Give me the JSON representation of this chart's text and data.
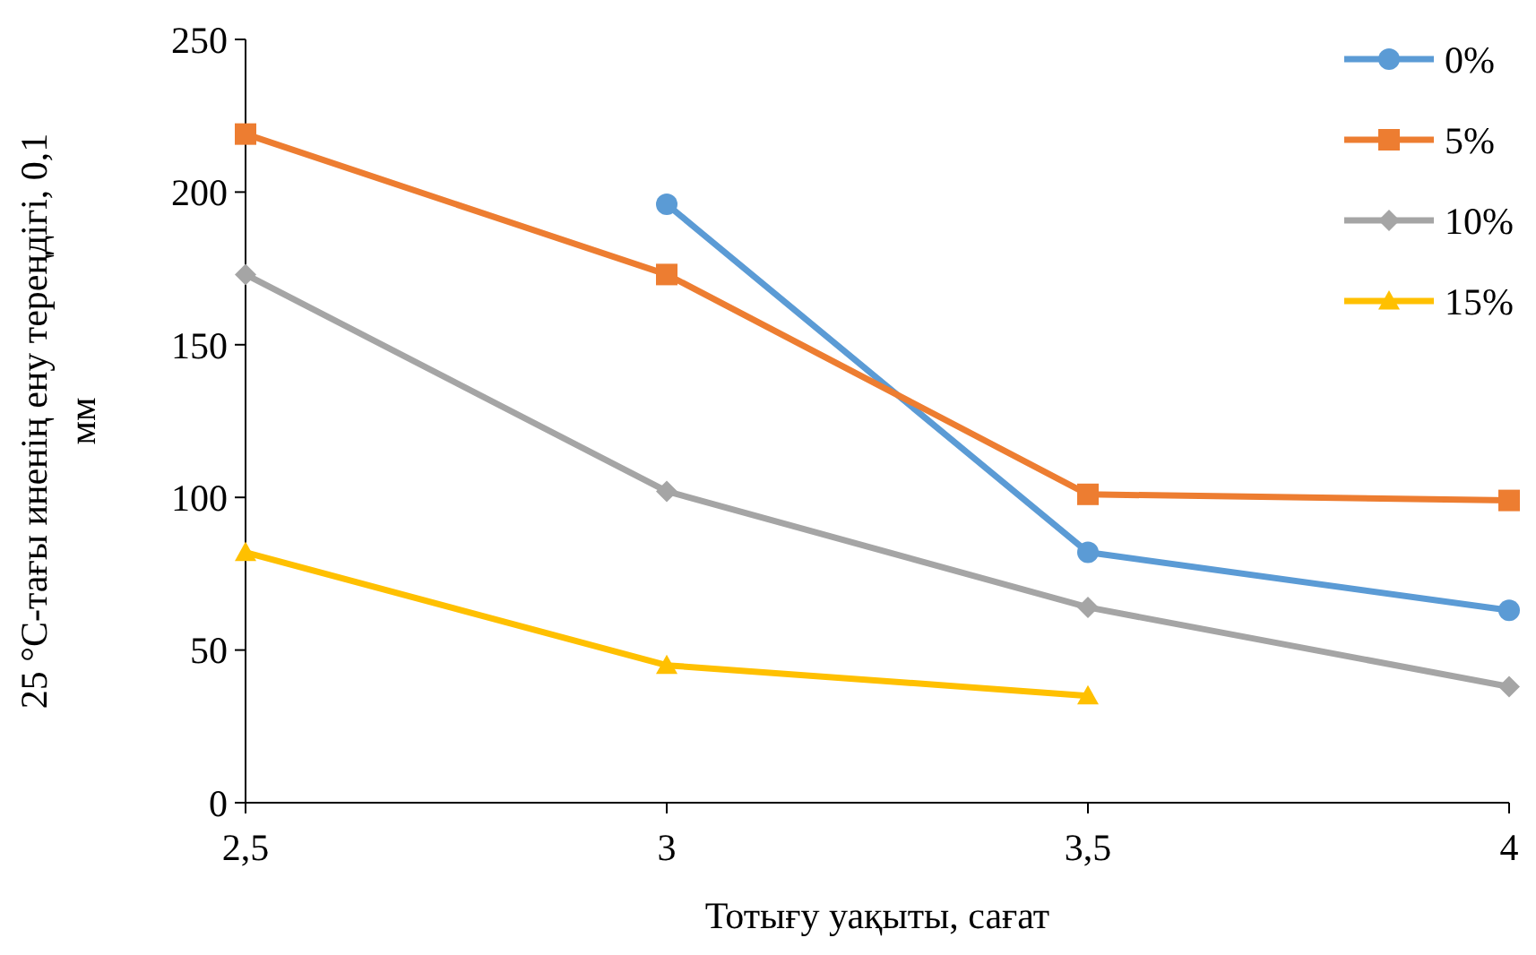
{
  "chart_data": {
    "type": "line",
    "xlabel": "Тотығу уақыты, сағат",
    "ylabel": "25 °C-тағы иненің ену тереңдігі, 0,1 мм",
    "xlim": [
      2.5,
      4
    ],
    "xticks": [
      {
        "value": 2.5,
        "label": "2,5"
      },
      3,
      {
        "value": 3.5,
        "label": "3,5"
      },
      4
    ],
    "ylim": [
      0,
      250
    ],
    "yticks": [
      0,
      50,
      100,
      150,
      200,
      250
    ],
    "grid": false,
    "legend": "top right",
    "series": [
      {
        "name": "0%",
        "color": "#5b9bd5",
        "marker": "circle",
        "x": [
          3,
          3.5,
          4
        ],
        "values": [
          196,
          82,
          63
        ]
      },
      {
        "name": "5%",
        "color": "#ed7d31",
        "marker": "square",
        "x": [
          2.5,
          3,
          3.5,
          4
        ],
        "values": [
          219,
          173,
          101,
          99
        ]
      },
      {
        "name": "10%",
        "color": "#a5a5a5",
        "marker": "diamond",
        "x": [
          2.5,
          3,
          3.5,
          4
        ],
        "values": [
          173,
          102,
          64,
          38
        ]
      },
      {
        "name": "15%",
        "color": "#ffc000",
        "marker": "triangle",
        "x": [
          2.5,
          3,
          3.5
        ],
        "values": [
          82,
          45,
          35
        ]
      }
    ]
  }
}
